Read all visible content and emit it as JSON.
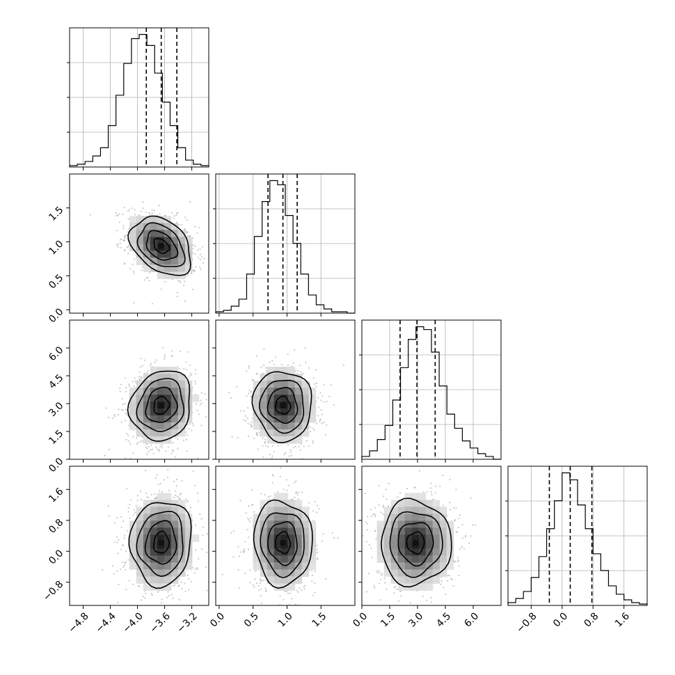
{
  "chart_data": {
    "type": "corner",
    "n_params": 4,
    "grid": true,
    "hist_color": "#000000",
    "density_color": "#000000",
    "params": [
      {
        "range": [
          -5.0,
          -2.95
        ],
        "ticks": [
          -4.8,
          -4.4,
          -4.0,
          -3.6,
          -3.2
        ],
        "tick_labels": [
          "−4.8",
          "−4.4",
          "−4.0",
          "−3.6",
          "−3.2"
        ],
        "quantiles": [
          -3.87,
          -3.65,
          -3.42
        ],
        "hist": [
          1,
          2,
          4,
          8,
          14,
          30,
          52,
          75,
          93,
          96,
          88,
          68,
          47,
          30,
          14,
          5,
          2,
          1
        ]
      },
      {
        "range": [
          -0.05,
          2.0
        ],
        "ticks": [
          0.0,
          0.5,
          1.0,
          1.5
        ],
        "tick_labels": [
          "0.0",
          "0.5",
          "1.0",
          "1.5"
        ],
        "quantiles": [
          0.72,
          0.94,
          1.15
        ],
        "hist": [
          1,
          2,
          5,
          10,
          28,
          55,
          80,
          95,
          92,
          70,
          50,
          28,
          13,
          6,
          3,
          1,
          1,
          0
        ]
      },
      {
        "range": [
          0.0,
          7.5
        ],
        "ticks": [
          0.0,
          1.5,
          3.0,
          4.5,
          6.0
        ],
        "tick_labels": [
          "0.0",
          "1.5",
          "3.0",
          "4.5",
          "6.0"
        ],
        "quantiles": [
          2.06,
          2.97,
          3.95
        ],
        "hist": [
          2,
          6,
          14,
          24,
          42,
          65,
          85,
          94,
          92,
          76,
          52,
          32,
          22,
          13,
          8,
          4,
          2,
          0
        ]
      },
      {
        "range": [
          -1.4,
          2.2
        ],
        "ticks": [
          -0.8,
          0.0,
          0.8,
          1.6
        ],
        "tick_labels": [
          "−0.8",
          "0.0",
          "0.8",
          "1.6"
        ],
        "ytick_labels_left": [
          "−0.8",
          "0.0",
          "0.8",
          "1.6"
        ],
        "quantiles": [
          -0.33,
          0.21,
          0.77
        ],
        "hist": [
          2,
          5,
          10,
          20,
          35,
          55,
          75,
          95,
          90,
          72,
          55,
          37,
          25,
          14,
          8,
          4,
          2,
          1
        ]
      }
    ],
    "pair_means": {
      "1_0": [
        -3.65,
        0.94
      ],
      "2_0": [
        -3.65,
        2.9
      ],
      "2_1": [
        0.94,
        2.9
      ],
      "3_0": [
        -3.65,
        0.22
      ],
      "3_1": [
        0.94,
        0.22
      ],
      "3_2": [
        2.9,
        0.22
      ]
    },
    "pair_correlation": {
      "1_0": -0.35,
      "2_0": 0.12,
      "2_1": -0.05,
      "3_0": 0.05,
      "3_1": -0.05,
      "3_2": 0.0
    }
  }
}
